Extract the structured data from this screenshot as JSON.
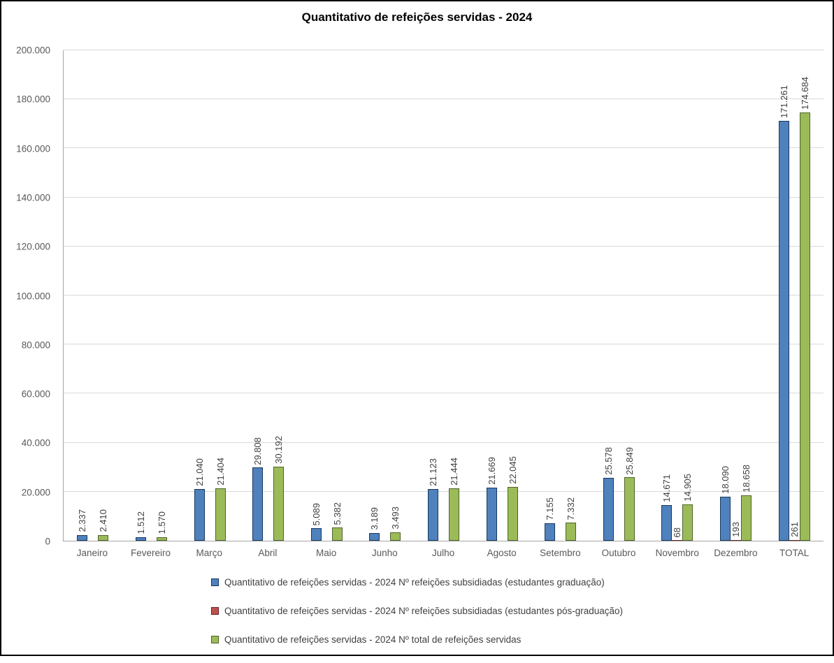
{
  "chart_data": {
    "type": "bar",
    "title": "Quantitativo de refeições servidas - 2024",
    "categories": [
      "Janeiro",
      "Fevereiro",
      "Março",
      "Abril",
      "Maio",
      "Junho",
      "Julho",
      "Agosto",
      "Setembro",
      "Outubro",
      "Novembro",
      "Dezembro",
      "TOTAL"
    ],
    "series": [
      {
        "name": "Quantitativo de refeições servidas - 2024 Nº refeições subsidiadas (estudantes graduação)",
        "fill": "#4F81BD",
        "border": "#17375D",
        "values": [
          2337,
          1512,
          21040,
          29808,
          5089,
          3189,
          21123,
          21669,
          7155,
          25578,
          14671,
          18090,
          171261
        ]
      },
      {
        "name": "Quantitativo de refeições servidas - 2024 Nº refeições subsidiadas (estudantes pós-graduação)",
        "fill": "#C0504D",
        "border": "#632423",
        "values": [
          null,
          null,
          null,
          null,
          null,
          null,
          null,
          null,
          null,
          null,
          68,
          193,
          261
        ]
      },
      {
        "name": "Quantitativo de refeições servidas - 2024 Nº total de refeições servidas",
        "fill": "#9BBB59",
        "border": "#4F6228",
        "values": [
          2410,
          1570,
          21404,
          30192,
          5382,
          3493,
          21444,
          22045,
          7332,
          25849,
          14905,
          18658,
          174684
        ]
      }
    ],
    "ylim": [
      0,
      200000
    ],
    "ytick_step": 20000,
    "ytick_labels": [
      "0",
      "20.000",
      "40.000",
      "60.000",
      "80.000",
      "100.000",
      "120.000",
      "140.000",
      "160.000",
      "180.000",
      "200.000"
    ],
    "grid": true,
    "legend_position": "bottom",
    "data_labels": "vertical, thousands separated by dots",
    "colors": {
      "gridline": "#D9D9D9",
      "axis": "#A6A6A6",
      "tick_text": "#595959",
      "label_text": "#3f3f3f",
      "frame": "#000000"
    }
  }
}
